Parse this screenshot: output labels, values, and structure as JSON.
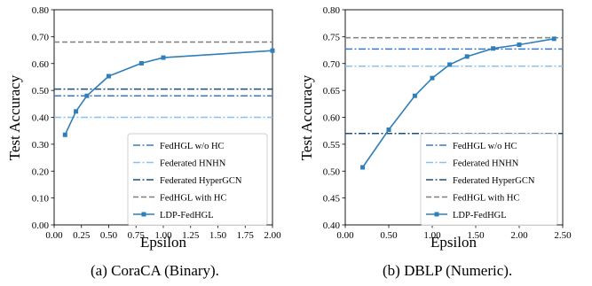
{
  "colors": {
    "fedhgl_wo_hc": "#3a78c9",
    "federated_hnhn": "#8ec0ec",
    "federated_hypergcn": "#1e4f7a",
    "fedhgl_with_hc": "#7f7f7f",
    "ldp_fedhgl": "#2e7fba"
  },
  "captions": [
    "(a) CoraCA (Binary).",
    "(b) DBLP (Numeric)."
  ],
  "chart_data": [
    {
      "type": "line",
      "xlabel": "Epsilon",
      "ylabel": "Test Accuracy",
      "xlim": [
        0.0,
        2.0
      ],
      "ylim": [
        0.0,
        0.8
      ],
      "xticks": [
        "0.00",
        "0.25",
        "0.50",
        "0.75",
        "1.00",
        "1.25",
        "1.50",
        "1.75",
        "2.00"
      ],
      "yticks": [
        "0.00",
        "0.10",
        "0.20",
        "0.30",
        "0.40",
        "0.50",
        "0.60",
        "0.70",
        "0.80"
      ],
      "grid": false,
      "legend_position": "bottom-right",
      "hlines": [
        {
          "name": "FedHGL w/o HC",
          "y": 0.48,
          "style": "dashdot",
          "color_key": "fedhgl_wo_hc"
        },
        {
          "name": "Federated HNHN",
          "y": 0.4,
          "style": "dashdot",
          "color_key": "federated_hnhn"
        },
        {
          "name": "Federated HyperGCN",
          "y": 0.505,
          "style": "dashdot",
          "color_key": "federated_hypergcn"
        },
        {
          "name": "FedHGL with HC",
          "y": 0.68,
          "style": "dashed",
          "color_key": "fedhgl_with_hc"
        }
      ],
      "series": [
        {
          "name": "LDP-FedHGL",
          "color_key": "ldp_fedhgl",
          "x": [
            0.1,
            0.2,
            0.3,
            0.5,
            0.8,
            1.0,
            2.0
          ],
          "y": [
            0.335,
            0.422,
            0.48,
            0.553,
            0.601,
            0.622,
            0.648
          ]
        }
      ]
    },
    {
      "type": "line",
      "xlabel": "Epsilon",
      "ylabel": "Test Accuracy",
      "xlim": [
        0.0,
        2.5
      ],
      "ylim": [
        0.4,
        0.8
      ],
      "xticks": [
        "0.00",
        "0.50",
        "1.00",
        "1.50",
        "2.00",
        "2.50"
      ],
      "yticks": [
        "0.40",
        "0.45",
        "0.50",
        "0.55",
        "0.60",
        "0.65",
        "0.70",
        "0.75",
        "0.80"
      ],
      "grid": false,
      "legend_position": "bottom-right",
      "hlines": [
        {
          "name": "FedHGL w/o HC",
          "y": 0.727,
          "style": "dashdot",
          "color_key": "fedhgl_wo_hc"
        },
        {
          "name": "Federated HNHN",
          "y": 0.695,
          "style": "dashdot",
          "color_key": "federated_hnhn"
        },
        {
          "name": "Federated HyperGCN",
          "y": 0.57,
          "style": "dashdot",
          "color_key": "federated_hypergcn"
        },
        {
          "name": "FedHGL with HC",
          "y": 0.748,
          "style": "dashed",
          "color_key": "fedhgl_with_hc"
        }
      ],
      "series": [
        {
          "name": "LDP-FedHGL",
          "color_key": "ldp_fedhgl",
          "x": [
            0.2,
            0.5,
            0.8,
            1.0,
            1.2,
            1.4,
            1.7,
            2.0,
            2.4
          ],
          "y": [
            0.507,
            0.577,
            0.64,
            0.673,
            0.698,
            0.713,
            0.728,
            0.735,
            0.746
          ]
        }
      ]
    }
  ]
}
